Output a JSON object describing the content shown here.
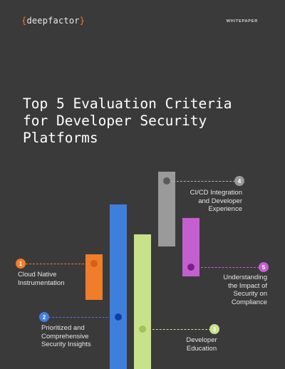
{
  "brand": {
    "open": "{",
    "name": "deepfactor",
    "close": "}"
  },
  "tag": "WHITEPAPER",
  "title": "Top 5 Evaluation Criteria for Developer Security Platforms",
  "colors": {
    "background": "#3b3a3a",
    "orange": "#f07d2a",
    "blue": "#3f7fdc",
    "green": "#c8e28a",
    "gray": "#9a9a9a",
    "purple": "#c45fd0"
  },
  "criteria": [
    {
      "number": "1",
      "label": "Cloud Native\nInstrumentation"
    },
    {
      "number": "2",
      "label": "Prioritized and\nComprehensive\nSecurity Insights"
    },
    {
      "number": "3",
      "label": "Developer\nEducation"
    },
    {
      "number": "4",
      "label": "CI/CD Integration\nand Developer\nExperience"
    },
    {
      "number": "5",
      "label": "Understanding\nthe Impact of\nSecurity on\nCompliance"
    }
  ]
}
